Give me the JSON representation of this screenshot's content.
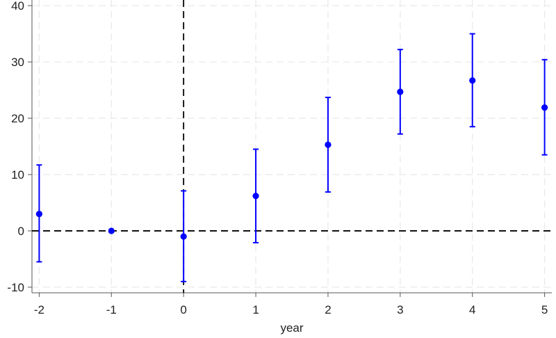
{
  "chart_data": {
    "type": "scatter",
    "xlabel": "year",
    "ylabel": "",
    "x": [
      -2,
      -1,
      0,
      1,
      2,
      3,
      4,
      5
    ],
    "series": [
      {
        "y": [
          3.0,
          0.0,
          -1.0,
          6.2,
          15.3,
          24.7,
          26.7,
          21.9
        ],
        "ci_lower": [
          -5.5,
          0.0,
          -9.0,
          -2.1,
          6.9,
          17.2,
          18.5,
          13.5
        ],
        "ci_upper": [
          11.7,
          0.0,
          7.1,
          14.5,
          23.7,
          32.2,
          35.0,
          30.4
        ]
      }
    ],
    "xlim": [
      -2.1,
      5.1
    ],
    "ylim": [
      -11,
      41
    ],
    "xticks": [
      "-2",
      "-1",
      "0",
      "1",
      "2",
      "3",
      "4",
      "5"
    ],
    "yticks": [
      "-10",
      "0",
      "10",
      "20",
      "30",
      "40"
    ],
    "reference_lines": {
      "x": 0,
      "y": 0,
      "style": "dashed"
    },
    "grid": true,
    "colors": {
      "marker": "#0000ff",
      "reference": "#000000",
      "grid": "#e8e8e8",
      "axis": "#555555"
    }
  }
}
